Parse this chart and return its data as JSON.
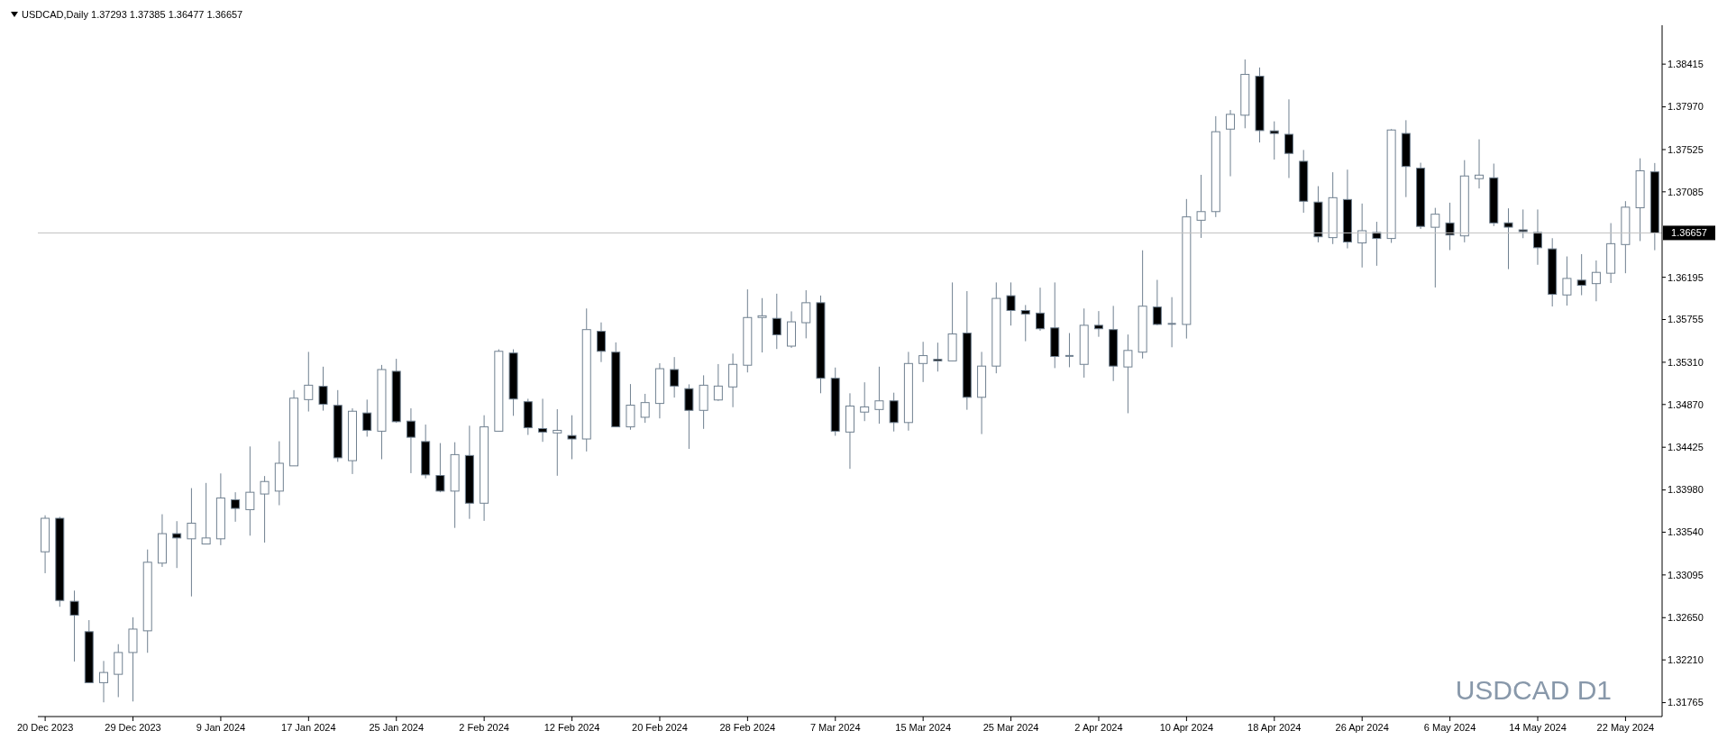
{
  "chart_data": {
    "type": "candlestick",
    "title": "USDCAD,Daily 1.37293 1.37385 1.36477 1.36657",
    "annotations": [
      "USDCAD D1"
    ],
    "color": "#708090",
    "categories": [
      "20 Dec 2023",
      null,
      null,
      null,
      null,
      null,
      "29 Dec 2023",
      null,
      null,
      null,
      null,
      null,
      "9 Jan 2024",
      null,
      null,
      null,
      null,
      null,
      "17 Jan 2024",
      null,
      null,
      null,
      null,
      null,
      "25 Jan 2024",
      null,
      null,
      null,
      null,
      null,
      "2 Feb 2024",
      null,
      null,
      null,
      null,
      null,
      "12 Feb 2024",
      null,
      null,
      null,
      null,
      null,
      "20 Feb 2024",
      null,
      null,
      null,
      null,
      null,
      "28 Feb 2024",
      null,
      null,
      null,
      null,
      null,
      "7 Mar 2024",
      null,
      null,
      null,
      null,
      null,
      "15 Mar 2024",
      null,
      null,
      null,
      null,
      null,
      "25 Mar 2024",
      null,
      null,
      null,
      null,
      null,
      "2 Apr 2024",
      null,
      null,
      null,
      null,
      null,
      "10 Apr 2024",
      null,
      null,
      null,
      null,
      null,
      "18 Apr 2024",
      null,
      null,
      null,
      null,
      null,
      "26 Apr 2024",
      null,
      null,
      null,
      null,
      null,
      "6 May 2024",
      null,
      null,
      null,
      null,
      null,
      "14 May 2024",
      null,
      null,
      null,
      null,
      null,
      "22 May 2024",
      null,
      null
    ],
    "ohlc": [
      [
        1.33336,
        1.33716,
        1.33113,
        1.33685
      ],
      [
        1.33685,
        1.337,
        1.32763,
        1.32829
      ],
      [
        1.3282,
        1.32932,
        1.32193,
        1.32675
      ],
      [
        1.32504,
        1.32624,
        1.31973,
        1.31973
      ],
      [
        1.31973,
        1.32199,
        1.31768,
        1.32079
      ],
      [
        1.3206,
        1.32374,
        1.31822,
        1.32287
      ],
      [
        1.32287,
        1.32654,
        1.31777,
        1.32531
      ],
      [
        1.32513,
        1.3336,
        1.32284,
        1.33227
      ],
      [
        1.33218,
        1.33727,
        1.33179,
        1.33525
      ],
      [
        1.33525,
        1.33655,
        1.33167,
        1.3348
      ],
      [
        1.33471,
        1.33999,
        1.32871,
        1.33634
      ],
      [
        1.33417,
        1.34053,
        1.33417,
        1.3348
      ],
      [
        1.33471,
        1.34152,
        1.33405,
        1.33896
      ],
      [
        1.33878,
        1.33956,
        1.33649,
        1.33788
      ],
      [
        1.33775,
        1.34433,
        1.33504,
        1.33956
      ],
      [
        1.33938,
        1.34125,
        1.33432,
        1.34068
      ],
      [
        1.33968,
        1.34487,
        1.33821,
        1.34258
      ],
      [
        1.34231,
        1.3502,
        1.34231,
        1.34936
      ],
      [
        1.34921,
        1.35418,
        1.34797,
        1.35071
      ],
      [
        1.35059,
        1.35264,
        1.34806,
        1.34873
      ],
      [
        1.34861,
        1.3502,
        1.34273,
        1.34315
      ],
      [
        1.34285,
        1.3483,
        1.34146,
        1.348
      ],
      [
        1.34782,
        1.34921,
        1.34535,
        1.34601
      ],
      [
        1.34592,
        1.35282,
        1.343,
        1.35234
      ],
      [
        1.35216,
        1.35346,
        1.34679,
        1.34691
      ],
      [
        1.34697,
        1.3483,
        1.34155,
        1.34529
      ],
      [
        1.34484,
        1.34661,
        1.34101,
        1.34137
      ],
      [
        1.34131,
        1.34468,
        1.33956,
        1.33968
      ],
      [
        1.33968,
        1.34477,
        1.33585,
        1.34348
      ],
      [
        1.34339,
        1.34649,
        1.33679,
        1.33842
      ],
      [
        1.33842,
        1.34758,
        1.33658,
        1.34637
      ],
      [
        1.34592,
        1.35445,
        1.34592,
        1.35424
      ],
      [
        1.35406,
        1.35445,
        1.34752,
        1.34927
      ],
      [
        1.34899,
        1.3493,
        1.34553,
        1.34628
      ],
      [
        1.34619,
        1.3493,
        1.34481,
        1.34583
      ],
      [
        1.34574,
        1.34821,
        1.34128,
        1.34601
      ],
      [
        1.34547,
        1.34758,
        1.343,
        1.34511
      ],
      [
        1.34511,
        1.3587,
        1.34381,
        1.3565
      ],
      [
        1.35632,
        1.35725,
        1.35312,
        1.35424
      ],
      [
        1.35415,
        1.35517,
        1.34637,
        1.34637
      ],
      [
        1.34637,
        1.35083,
        1.34607,
        1.34863
      ],
      [
        1.34737,
        1.34981,
        1.34679,
        1.3489
      ],
      [
        1.34881,
        1.353,
        1.34725,
        1.35243
      ],
      [
        1.35234,
        1.35364,
        1.34942,
        1.35062
      ],
      [
        1.35035,
        1.3508,
        1.34408,
        1.34809
      ],
      [
        1.34809,
        1.35174,
        1.34616,
        1.35071
      ],
      [
        1.34917,
        1.35291,
        1.34908,
        1.35062
      ],
      [
        1.35053,
        1.354,
        1.34842,
        1.35288
      ],
      [
        1.35279,
        1.36069,
        1.35204,
        1.35776
      ],
      [
        1.35776,
        1.35978,
        1.35412,
        1.35794
      ],
      [
        1.35767,
        1.36024,
        1.35448,
        1.35596
      ],
      [
        1.35478,
        1.3584,
        1.3546,
        1.35731
      ],
      [
        1.35722,
        1.3606,
        1.35559,
        1.3593
      ],
      [
        1.3593,
        1.36005,
        1.34987,
        1.35143
      ],
      [
        1.35143,
        1.35255,
        1.34544,
        1.34592
      ],
      [
        1.34583,
        1.34987,
        1.342,
        1.34854
      ],
      [
        1.34791,
        1.35101,
        1.34697,
        1.34845
      ],
      [
        1.34818,
        1.35264,
        1.3467,
        1.34908
      ],
      [
        1.34908,
        1.34993,
        1.34589,
        1.34682
      ],
      [
        1.34682,
        1.35418,
        1.34598,
        1.35297
      ],
      [
        1.35297,
        1.35523,
        1.35104,
        1.35379
      ],
      [
        1.3534,
        1.35514,
        1.35213,
        1.35324
      ],
      [
        1.35324,
        1.36141,
        1.35324,
        1.35605
      ],
      [
        1.35614,
        1.36051,
        1.34815,
        1.34945
      ],
      [
        1.34945,
        1.35418,
        1.34562,
        1.3527
      ],
      [
        1.3527,
        1.36141,
        1.35195,
        1.35975
      ],
      [
        1.36003,
        1.36141,
        1.35692,
        1.35849
      ],
      [
        1.35849,
        1.35906,
        1.35529,
        1.35813
      ],
      [
        1.35822,
        1.36087,
        1.35638,
        1.35659
      ],
      [
        1.35668,
        1.36141,
        1.35249,
        1.3537
      ],
      [
        1.35376,
        1.35614,
        1.35258,
        1.35376
      ],
      [
        1.35288,
        1.3587,
        1.3515,
        1.35695
      ],
      [
        1.35695,
        1.35843,
        1.35575,
        1.35659
      ],
      [
        1.3565,
        1.35897,
        1.35114,
        1.3527
      ],
      [
        1.35261,
        1.35599,
        1.34779,
        1.35433
      ],
      [
        1.35415,
        1.36476,
        1.35349,
        1.35894
      ],
      [
        1.35885,
        1.36168,
        1.35695,
        1.35704
      ],
      [
        1.3571,
        1.35988,
        1.35466,
        1.3571
      ],
      [
        1.35704,
        1.3701,
        1.35557,
        1.36824
      ],
      [
        1.36789,
        1.37262,
        1.36605,
        1.36879
      ],
      [
        1.36879,
        1.37873,
        1.36822,
        1.37711
      ],
      [
        1.37738,
        1.37937,
        1.37247,
        1.37892
      ],
      [
        1.37883,
        1.38464,
        1.37747,
        1.38308
      ],
      [
        1.38289,
        1.3838,
        1.37599,
        1.37723
      ],
      [
        1.3772,
        1.37819,
        1.37421,
        1.37693
      ],
      [
        1.37684,
        1.38048,
        1.37229,
        1.37485
      ],
      [
        1.37403,
        1.37521,
        1.36867,
        1.36987
      ],
      [
        1.36978,
        1.37144,
        1.36559,
        1.36617
      ],
      [
        1.36608,
        1.37289,
        1.36541,
        1.37024
      ],
      [
        1.37005,
        1.37316,
        1.36496,
        1.36562
      ],
      [
        1.36553,
        1.36963,
        1.36297,
        1.3668
      ],
      [
        1.36662,
        1.36773,
        1.36315,
        1.36599
      ],
      [
        1.36599,
        1.37738,
        1.36553,
        1.37729
      ],
      [
        1.37693,
        1.37831,
        1.3703,
        1.37349
      ],
      [
        1.37331,
        1.37388,
        1.36698,
        1.36725
      ],
      [
        1.36716,
        1.36918,
        1.36089,
        1.36852
      ],
      [
        1.36761,
        1.36972,
        1.36478,
        1.36635
      ],
      [
        1.36626,
        1.37415,
        1.36559,
        1.3725
      ],
      [
        1.37222,
        1.37632,
        1.3712,
        1.37259
      ],
      [
        1.37231,
        1.37379,
        1.36728,
        1.36761
      ],
      [
        1.36762,
        1.36913,
        1.3628,
        1.36717
      ],
      [
        1.36689,
        1.36901,
        1.36602,
        1.36671
      ],
      [
        1.36662,
        1.36901,
        1.36325,
        1.36503
      ],
      [
        1.36491,
        1.36602,
        1.35891,
        1.36017
      ],
      [
        1.36011,
        1.36412,
        1.359,
        1.36183
      ],
      [
        1.36165,
        1.36436,
        1.36008,
        1.36111
      ],
      [
        1.36129,
        1.3637,
        1.35945,
        1.36246
      ],
      [
        1.36237,
        1.36759,
        1.36135,
        1.36545
      ],
      [
        1.36536,
        1.36988,
        1.36237,
        1.36925
      ],
      [
        1.36919,
        1.37434,
        1.36572,
        1.37304
      ],
      [
        1.37293,
        1.37385,
        1.36477,
        1.36657
      ]
    ],
    "ylim": [
      1.3162,
      1.3882
    ],
    "yticks": [
      1.38415,
      {
        "value": 1.3797,
        "label": "1.37970"
      },
      1.37525,
      1.37085,
      1.36195,
      1.35755,
      {
        "value": 1.3531,
        "label": "1.35310"
      },
      {
        "value": 1.3487,
        "label": "1.34870"
      },
      1.34425,
      {
        "value": 1.3398,
        "label": "1.33980"
      },
      {
        "value": 1.3354,
        "label": "1.33540"
      },
      1.33095,
      {
        "value": 1.3265,
        "label": "1.32650"
      },
      {
        "value": 1.3221,
        "label": "1.32210"
      },
      1.31765
    ],
    "ref_lines": [
      {
        "axis": "y",
        "value": 1.36657,
        "label": "1.36657",
        "color": "#c0c0c0"
      }
    ]
  }
}
